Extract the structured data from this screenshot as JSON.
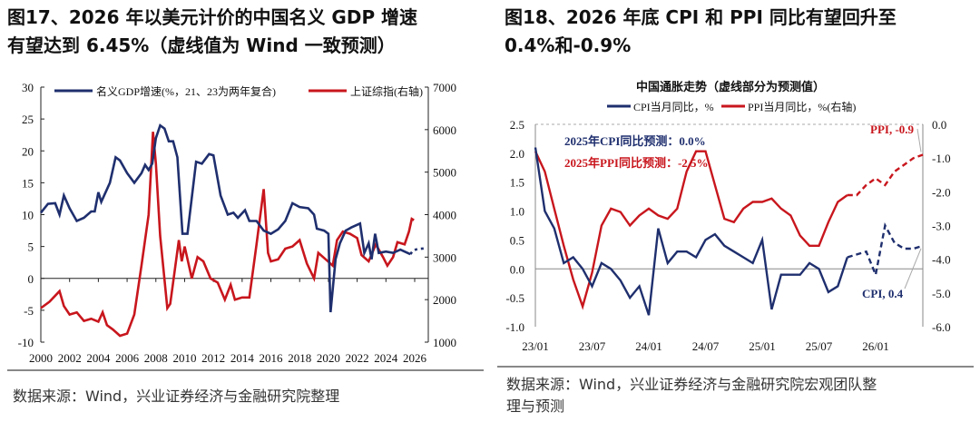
{
  "left": {
    "title_line1": "图17、2026 年以美元计价的中国名义 GDP 增速",
    "title_line2": "有望达到 6.45%（虚线值为 Wind 一致预测）",
    "source": "数据来源：Wind，兴业证券经济与金融研究院整理"
  },
  "right": {
    "title_line1": "图18、2026 年底 CPI 和 PPI 同比有望回升至",
    "title_line2": "0.4%和-0.9%",
    "source_line1": "数据来源：Wind，兴业证券经济与金融研究院宏观团队整",
    "source_line2": "理与预测"
  },
  "chart_data": [
    {
      "type": "line",
      "title": "",
      "x_ticks": [
        "2000",
        "2002",
        "2004",
        "2006",
        "2008",
        "2010",
        "2012",
        "2014",
        "2016",
        "2018",
        "2020",
        "2022",
        "2024",
        "2026"
      ],
      "y_ticks": [
        "30",
        "25",
        "20",
        "15",
        "10",
        "5",
        "0",
        "-5",
        "-10"
      ],
      "y2_ticks": [
        "7000",
        "6000",
        "5000",
        "4000",
        "3000",
        "2000",
        "1000"
      ],
      "ylim": [
        -10,
        30
      ],
      "y2lim": [
        1000,
        7000
      ],
      "xlim": [
        2000,
        2026.9
      ],
      "series": [
        {
          "name": "名义GDP增速(%，21、23为两年复合)",
          "color": "#1f2f6e",
          "axis": "left",
          "points": [
            [
              2000,
              10.3
            ],
            [
              2000.5,
              11.7
            ],
            [
              2001,
              11.8
            ],
            [
              2001.3,
              10
            ],
            [
              2001.6,
              13
            ],
            [
              2002,
              11
            ],
            [
              2002.5,
              9
            ],
            [
              2003,
              9.5
            ],
            [
              2003.5,
              10.5
            ],
            [
              2003.75,
              10.5
            ],
            [
              2004,
              13.5
            ],
            [
              2004.2,
              12
            ],
            [
              2004.8,
              15
            ],
            [
              2005.2,
              19
            ],
            [
              2005.5,
              18.5
            ],
            [
              2006,
              16.5
            ],
            [
              2006.5,
              15
            ],
            [
              2007,
              16.5
            ],
            [
              2007.25,
              17.8
            ],
            [
              2007.5,
              17
            ],
            [
              2007.75,
              18
            ],
            [
              2008,
              22
            ],
            [
              2008.3,
              24
            ],
            [
              2008.6,
              23.5
            ],
            [
              2008.9,
              21.5
            ],
            [
              2009.2,
              21.5
            ],
            [
              2009.5,
              19
            ],
            [
              2009.85,
              7
            ],
            [
              2010.2,
              7
            ],
            [
              2010.8,
              18.3
            ],
            [
              2011.2,
              18
            ],
            [
              2011.7,
              19.5
            ],
            [
              2012,
              19.3
            ],
            [
              2012.5,
              13
            ],
            [
              2013,
              10
            ],
            [
              2013.4,
              10.3
            ],
            [
              2013.7,
              9.5
            ],
            [
              2014.2,
              10.7
            ],
            [
              2014.5,
              9
            ],
            [
              2015,
              9
            ],
            [
              2015.5,
              7.5
            ],
            [
              2016,
              7
            ],
            [
              2016.5,
              7.7
            ],
            [
              2017,
              9
            ],
            [
              2017.5,
              11.8
            ],
            [
              2018,
              11.2
            ],
            [
              2018.6,
              11
            ],
            [
              2019,
              10
            ],
            [
              2019.2,
              7.8
            ],
            [
              2019.7,
              7.5
            ],
            [
              2020,
              7
            ],
            [
              2020.15,
              -5.3
            ],
            [
              2020.5,
              3
            ],
            [
              2020.8,
              5.5
            ],
            [
              2021.2,
              7.5
            ],
            [
              2021.6,
              8
            ],
            [
              2022.2,
              8.6
            ],
            [
              2022.5,
              4
            ],
            [
              2022.8,
              5.5
            ],
            [
              2023,
              3
            ],
            [
              2023.25,
              7
            ],
            [
              2023.5,
              4
            ],
            [
              2024,
              4.2
            ],
            [
              2024.5,
              4
            ],
            [
              2025,
              4.5
            ],
            [
              2025.4,
              4.1
            ],
            [
              2025.7,
              3.8
            ]
          ],
          "forecast": [
            [
              2025.7,
              3.8
            ],
            [
              2025.9,
              4.4
            ],
            [
              2026.2,
              4.6
            ],
            [
              2026.7,
              4.7
            ]
          ]
        },
        {
          "name": "上证综指(右轴)",
          "color": "#c8161d",
          "axis": "right",
          "points": [
            [
              2000,
              1800
            ],
            [
              2000.6,
              1950
            ],
            [
              2001.3,
              2200
            ],
            [
              2001.6,
              1850
            ],
            [
              2002,
              1650
            ],
            [
              2002.5,
              1700
            ],
            [
              2003,
              1500
            ],
            [
              2003.5,
              1550
            ],
            [
              2004,
              1480
            ],
            [
              2004.3,
              1700
            ],
            [
              2004.6,
              1400
            ],
            [
              2005,
              1300
            ],
            [
              2005.5,
              1150
            ],
            [
              2006,
              1200
            ],
            [
              2006.5,
              1650
            ],
            [
              2007,
              2800
            ],
            [
              2007.5,
              4000
            ],
            [
              2007.8,
              5950
            ],
            [
              2008,
              5200
            ],
            [
              2008.3,
              3500
            ],
            [
              2008.8,
              1800
            ],
            [
              2009,
              1900
            ],
            [
              2009.6,
              3400
            ],
            [
              2009.8,
              2900
            ],
            [
              2010,
              3250
            ],
            [
              2010.5,
              2500
            ],
            [
              2010.9,
              3000
            ],
            [
              2011.3,
              2900
            ],
            [
              2011.8,
              2500
            ],
            [
              2012.3,
              2400
            ],
            [
              2012.8,
              2000
            ],
            [
              2013.2,
              2350
            ],
            [
              2013.5,
              2000
            ],
            [
              2014,
              2050
            ],
            [
              2014.5,
              2050
            ],
            [
              2015,
              3300
            ],
            [
              2015.5,
              4600
            ],
            [
              2015.8,
              3100
            ],
            [
              2016,
              2900
            ],
            [
              2016.5,
              2950
            ],
            [
              2017,
              3200
            ],
            [
              2017.5,
              3250
            ],
            [
              2018,
              3400
            ],
            [
              2018.5,
              2850
            ],
            [
              2019,
              2500
            ],
            [
              2019.3,
              3100
            ],
            [
              2019.8,
              2950
            ],
            [
              2020.3,
              2800
            ],
            [
              2020.6,
              3400
            ],
            [
              2021,
              3600
            ],
            [
              2021.5,
              3550
            ],
            [
              2022,
              3450
            ],
            [
              2022.3,
              3050
            ],
            [
              2022.8,
              2900
            ],
            [
              2023.3,
              3300
            ],
            [
              2023.8,
              3000
            ],
            [
              2024.1,
              2800
            ],
            [
              2024.5,
              3000
            ],
            [
              2024.8,
              3350
            ],
            [
              2025.3,
              3300
            ],
            [
              2025.6,
              3600
            ],
            [
              2025.8,
              3900
            ],
            [
              2025.95,
              3870
            ]
          ]
        }
      ]
    },
    {
      "type": "line",
      "title": "中国通胀走势（虚线部分为预测值）",
      "x_ticks": [
        "23/01",
        "23/07",
        "24/01",
        "24/07",
        "25/01",
        "25/07",
        "26/01"
      ],
      "y_ticks": [
        "2.5",
        "2.0",
        "1.5",
        "1.0",
        "0.5",
        "0.0",
        "-0.5",
        "-1.0"
      ],
      "y2_ticks": [
        "0.0",
        "-1.0",
        "-2.0",
        "-3.0",
        "-4.0",
        "-5.0",
        "-6.0"
      ],
      "ylim": [
        -1.0,
        2.5
      ],
      "y2lim": [
        -6.0,
        0.0
      ],
      "start_month": "23/01",
      "series": [
        {
          "name": "CPI当月同比，%",
          "color": "#1f2f6e",
          "axis": "left",
          "values": [
            2.1,
            1.0,
            0.7,
            0.1,
            0.2,
            0.0,
            -0.3,
            0.1,
            0.0,
            -0.2,
            -0.5,
            -0.3,
            -0.8,
            0.7,
            0.1,
            0.3,
            0.3,
            0.2,
            0.5,
            0.6,
            0.4,
            0.3,
            0.2,
            0.1,
            0.5,
            -0.7,
            -0.1,
            -0.1,
            -0.1,
            0.1,
            0.0,
            -0.4,
            -0.3,
            0.2
          ],
          "forecast": [
            0.25,
            0.3,
            -0.1,
            0.75,
            0.45,
            0.35,
            0.35,
            0.4
          ]
        },
        {
          "name": "PPI当月同比，%(右轴)",
          "color": "#c8161d",
          "axis": "right",
          "values": [
            -0.8,
            -1.4,
            -2.5,
            -3.6,
            -4.6,
            -5.4,
            -4.4,
            -3.0,
            -2.5,
            -2.6,
            -3.0,
            -2.7,
            -2.5,
            -2.7,
            -2.8,
            -2.5,
            -1.4,
            -0.8,
            -0.8,
            -1.8,
            -2.8,
            -2.9,
            -2.5,
            -2.3,
            -2.3,
            -2.2,
            -2.5,
            -2.7,
            -3.3,
            -3.6,
            -3.6,
            -2.9,
            -2.3,
            -2.1
          ],
          "forecast": [
            -2.1,
            -1.8,
            -1.6,
            -1.8,
            -1.4,
            -1.2,
            -1.0,
            -0.9
          ]
        }
      ],
      "annotations": {
        "cpi_forecast": "2025年CPI同比预测：0.0%",
        "ppi_forecast": "2025年PPI同比预测：-2.5%",
        "ppi_end": "PPI, -0.9",
        "cpi_end": "CPI, 0.4"
      }
    }
  ]
}
